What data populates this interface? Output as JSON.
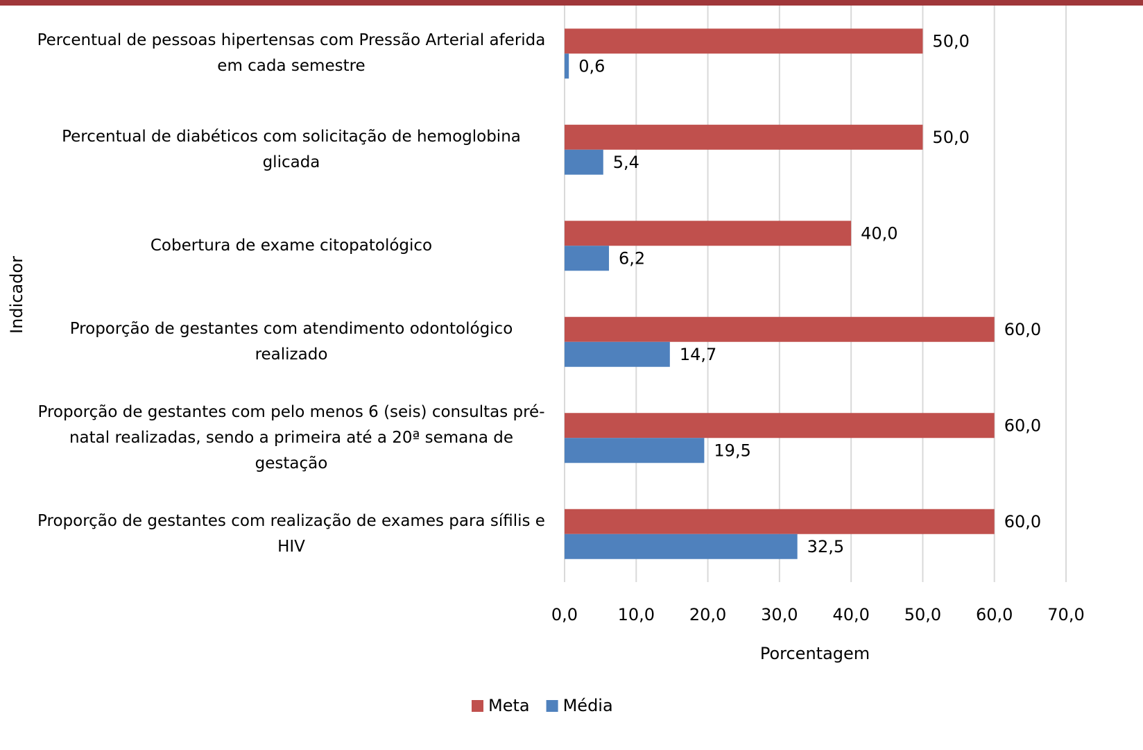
{
  "chart_data": {
    "type": "hbar",
    "xlabel": "Porcentagem",
    "ylabel": "Indicador",
    "categories": [
      "Percentual de pessoas hipertensas com Pressão Arterial aferida em cada semestre",
      "Percentual de diabéticos com solicitação de hemoglobina glicada",
      "Cobertura de exame citopatológico",
      "Proporção de gestantes com atendimento odontológico realizado",
      "Proporção de gestantes com pelo menos 6 (seis) consultas pré-natal realizadas, sendo a primeira até a 20ª semana de gestação",
      "Proporção de gestantes com realização de exames para sífilis e HIV"
    ],
    "series": [
      {
        "name": "Meta",
        "color": "#c0504d",
        "values": [
          50,
          50,
          40,
          60,
          60,
          60
        ],
        "value_labels": [
          "50,0",
          "50,0",
          "40,0",
          "60,0",
          "60,0",
          "60,0"
        ]
      },
      {
        "name": "Média",
        "color": "#4f81bd",
        "values": [
          0.6,
          5.4,
          6.2,
          14.7,
          19.5,
          32.5
        ],
        "value_labels": [
          "0,6",
          "5,4",
          "6,2",
          "14,7",
          "19,5",
          "32,5"
        ]
      }
    ],
    "xlim": [
      0,
      70
    ],
    "xticks": [
      {
        "value": 0,
        "label": "0,0"
      },
      {
        "value": 10,
        "label": "10,0"
      },
      {
        "value": 20,
        "label": "20,0"
      },
      {
        "value": 30,
        "label": "30,0"
      },
      {
        "value": 40,
        "label": "40,0"
      },
      {
        "value": 50,
        "label": "50,0"
      },
      {
        "value": 60,
        "label": "60,0"
      },
      {
        "value": 70,
        "label": "70,0"
      }
    ],
    "grid": true,
    "legend": "bottom"
  }
}
